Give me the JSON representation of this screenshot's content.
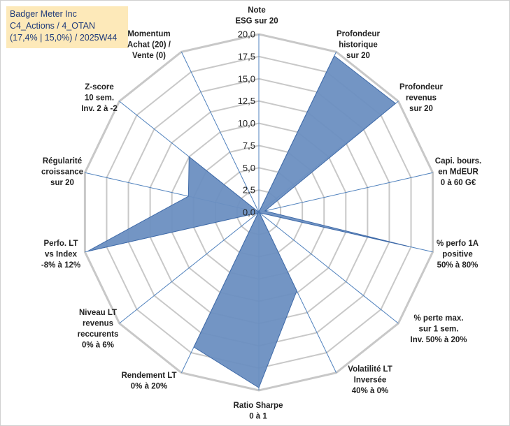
{
  "chart_data": {
    "type": "radar",
    "title": [
      "Badger Meter Inc",
      "C4_Actions / 4_OTAN",
      "(17,4% | 15,0%) / 2025W44"
    ],
    "rlim": [
      0,
      20
    ],
    "ticks": [
      "0,0",
      "2,5",
      "5,0",
      "7,5",
      "10,0",
      "12,5",
      "15,0",
      "17,5",
      "20,0"
    ],
    "categories": [
      [
        "Note",
        "ESG sur 20"
      ],
      [
        "Profondeur",
        "historique",
        "sur 20"
      ],
      [
        "Profondeur",
        "revenus",
        "sur 20"
      ],
      [
        "Capi. bours.",
        "en MdEUR",
        "0 à 60 G€"
      ],
      [
        "% perfo 1A",
        "positive",
        "50% à 80%"
      ],
      [
        "% perte max.",
        "sur 1 sem.",
        "Inv. 50% à 20%"
      ],
      [
        "Volatilité LT",
        "Inversée",
        "40% à 0%"
      ],
      [
        "Ratio Sharpe",
        "0 à 1"
      ],
      [
        "Rendement LT",
        "0% à 20%"
      ],
      [
        "Niveau LT",
        "revenus",
        "reccurents",
        "0% à 6%"
      ],
      [
        "Perfo. LT",
        "vs Index",
        "-8% à 12%"
      ],
      [
        "Régularité",
        "croissance",
        "sur 20"
      ],
      [
        "Z-score",
        "10 sem.",
        "Inv. 2 à -2"
      ],
      [
        "Momentum",
        "Achat (20) /",
        "Vente (0)"
      ]
    ],
    "series": [
      {
        "name": "Badger Meter Inc",
        "values": [
          0.0,
          19.5,
          19.6,
          0.7,
          17.3,
          0.1,
          9.8,
          19.7,
          16.8,
          0.1,
          19.7,
          8.1,
          10.0,
          0.0
        ]
      }
    ],
    "colors": {
      "fill": "#6b8fc1",
      "stroke": "#3f6aa8",
      "grid": "#c8c8c8",
      "spoke": "#4f81bd",
      "title_bg": "#fde9b9",
      "title_text": "#1f3a7a"
    }
  }
}
